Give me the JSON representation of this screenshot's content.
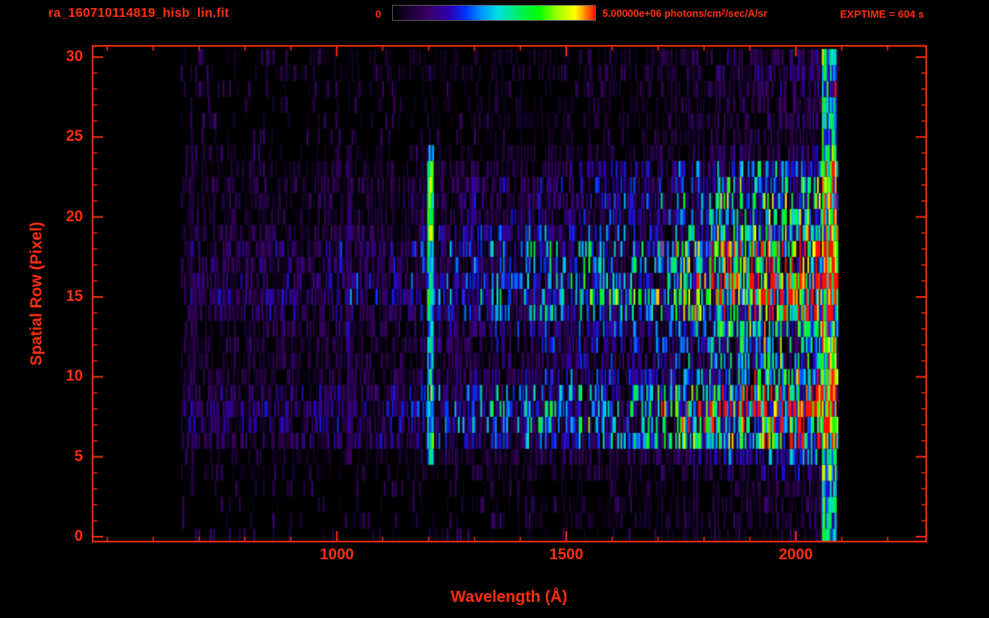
{
  "header": {
    "title": "ra_160710114819_hisb_lin.fit",
    "exptime": "EXPTIME = 604 s"
  },
  "colorbar": {
    "min_label": "0",
    "max_label_prefix": "5.00000e+06 photons/cm",
    "max_label_sup": "2",
    "max_label_suffix": "/sec/A/sr"
  },
  "colors": {
    "accent": "#ff2e0e",
    "background": "#000000"
  },
  "chart_data": {
    "type": "heatmap",
    "title": "ra_160710114819_hisb_lin.fit",
    "xlabel": "Wavelength (Å)",
    "ylabel": "Spatial Row (Pixel)",
    "xlim": [
      468,
      2284
    ],
    "ylim": [
      -0.3,
      30.7
    ],
    "xticks": [
      1000,
      1500,
      2000
    ],
    "x_minor_step": 100,
    "yticks": [
      0,
      5,
      10,
      15,
      20,
      25,
      30
    ],
    "y_minor_step": 1,
    "exptime_s": 604,
    "wavelength_range": [
      660,
      2092
    ],
    "row_count": 31,
    "row_profile": [
      0.07,
      0.1,
      0.12,
      0.09,
      0.22,
      0.3,
      0.75,
      0.95,
      1.0,
      0.88,
      0.55,
      0.45,
      0.5,
      0.55,
      0.85,
      1.0,
      0.95,
      0.8,
      0.9,
      0.65,
      0.5,
      0.55,
      0.5,
      0.4,
      0.18,
      0.12,
      0.14,
      0.12,
      0.14,
      0.18,
      0.14
    ],
    "continuum": [
      [
        660,
        0.16
      ],
      [
        900,
        0.19
      ],
      [
        1150,
        0.22
      ],
      [
        1260,
        0.3
      ],
      [
        1650,
        0.48
      ],
      [
        1900,
        0.85
      ],
      [
        2040,
        1.0
      ]
    ],
    "emission_lines": [
      {
        "wavelength": 1204,
        "halfwidth": 6,
        "rows": [
          5,
          24
        ],
        "strength": 0.45,
        "note": "bright airglow emission line near 1200 A"
      },
      {
        "wavelength": 1204,
        "halfwidth": 6,
        "rows": [
          19,
          23
        ],
        "strength": 0.22,
        "note": "brightest green blob on the line, rows 19-23"
      },
      {
        "wavelength": 1026,
        "halfwidth": 5,
        "rows": [
          5,
          24
        ],
        "strength": 0.12,
        "note": "faint line near 1025 A"
      },
      {
        "wavelength": 684,
        "halfwidth": 4,
        "rows": [
          3,
          25
        ],
        "strength": 0.09,
        "note": "faint purple vertical streak near 685 A"
      }
    ],
    "edge_band": {
      "range": [
        2058,
        2090
      ],
      "note": "bright multicolor column at long-wavelength edge"
    },
    "colorbar": {
      "min": 0,
      "max": 5000000,
      "units": "photons/cm2/sec/A/sr",
      "stops": [
        [
          0.0,
          "#000000"
        ],
        [
          0.08,
          "#1a0033"
        ],
        [
          0.18,
          "#3d0066"
        ],
        [
          0.28,
          "#2a00b4"
        ],
        [
          0.36,
          "#0033ff"
        ],
        [
          0.44,
          "#0099ff"
        ],
        [
          0.52,
          "#00e0e0"
        ],
        [
          0.62,
          "#00ee66"
        ],
        [
          0.72,
          "#00ff00"
        ],
        [
          0.82,
          "#aaff00"
        ],
        [
          0.9,
          "#ffff00"
        ],
        [
          0.95,
          "#ff8800"
        ],
        [
          1.0,
          "#ff1100"
        ]
      ]
    },
    "seed": 20160710
  }
}
